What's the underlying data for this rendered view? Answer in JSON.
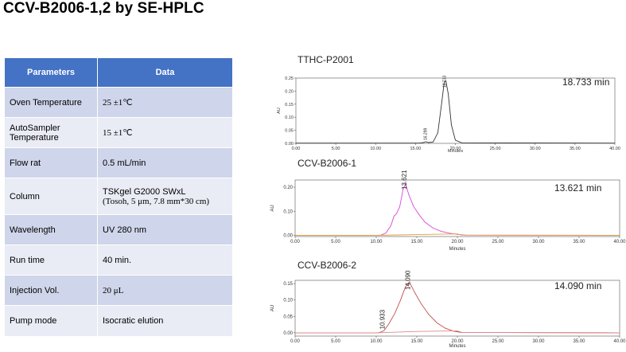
{
  "page_title": "CCV-B2006-1,2 by SE-HPLC",
  "table": {
    "headers": [
      "Parameters",
      "Data"
    ],
    "rows": [
      {
        "param": "Oven Temperature",
        "value": "25 ±1℃"
      },
      {
        "param": "AutoSampler Temperature",
        "value": "15 ±1℃"
      },
      {
        "param": "Flow rat",
        "value": "0.5 mL/min"
      },
      {
        "param": "Column",
        "value": "TSKgel G2000 SWxL",
        "value2": "(Tosoh, 5 μm, 7.8 mm*30 cm)"
      },
      {
        "param": "Wavelength",
        "value": "UV 280 nm"
      },
      {
        "param": "Run time",
        "value": "40 min."
      },
      {
        "param": "Injection Vol.",
        "value": "20 μL"
      },
      {
        "param": "Pump mode",
        "value": "Isocratic elution"
      }
    ]
  },
  "chart_data": [
    {
      "type": "line",
      "title": "TTHC-P2001",
      "retention_label": "18.733 min",
      "xlabel": "Minutes",
      "ylabel": "AU",
      "xlim": [
        0,
        40
      ],
      "ylim": [
        0,
        0.25
      ],
      "x_ticks": [
        "0.00",
        "5.00",
        "10.00",
        "15.00",
        "20.00",
        "25.00",
        "30.00",
        "35.00",
        "40.00"
      ],
      "y_ticks": [
        "0.00",
        "0.05",
        "0.10",
        "0.15",
        "0.20",
        "0.25"
      ],
      "peak_labels": [
        {
          "x": 16.3,
          "text": "16.299"
        },
        {
          "x": 18.7,
          "text": "18.733"
        }
      ],
      "series": [
        {
          "color": "#333333",
          "points": [
            [
              0,
              0.001
            ],
            [
              15.5,
              0.001
            ],
            [
              16.0,
              0.003
            ],
            [
              16.3,
              0.006
            ],
            [
              16.6,
              0.003
            ],
            [
              17.2,
              0.005
            ],
            [
              17.8,
              0.04
            ],
            [
              18.3,
              0.16
            ],
            [
              18.6,
              0.235
            ],
            [
              18.8,
              0.24
            ],
            [
              19.1,
              0.19
            ],
            [
              19.5,
              0.07
            ],
            [
              20.0,
              0.012
            ],
            [
              20.8,
              0.002
            ],
            [
              40,
              0.001
            ]
          ]
        }
      ]
    },
    {
      "type": "line",
      "title": "CCV-B2006-1",
      "retention_label": "13.621 min",
      "xlabel": "Minutes",
      "ylabel": "AU",
      "xlim": [
        0,
        40
      ],
      "ylim": [
        -0.005,
        0.23
      ],
      "x_ticks": [
        "0.00",
        "5.00",
        "10.00",
        "15.00",
        "20.00",
        "25.00",
        "30.00",
        "35.00",
        "40.00"
      ],
      "y_ticks": [
        "0.00",
        "0.10",
        "0.20"
      ],
      "peak_labels": [
        {
          "x": 13.62,
          "text": "13.621"
        }
      ],
      "series": [
        {
          "color": "#d44ad4",
          "points": [
            [
              0,
              0
            ],
            [
              10.5,
              0
            ],
            [
              11.2,
              0.01
            ],
            [
              11.8,
              0.04
            ],
            [
              12.2,
              0.08
            ],
            [
              12.5,
              0.09
            ],
            [
              12.9,
              0.12
            ],
            [
              13.3,
              0.19
            ],
            [
              13.62,
              0.215
            ],
            [
              14.0,
              0.17
            ],
            [
              14.6,
              0.12
            ],
            [
              15.3,
              0.085
            ],
            [
              16.0,
              0.055
            ],
            [
              17.0,
              0.03
            ],
            [
              18.0,
              0.017
            ],
            [
              19.0,
              0.009
            ],
            [
              20.0,
              0.004
            ],
            [
              21.0,
              0.001
            ],
            [
              40,
              0
            ]
          ]
        },
        {
          "color": "#e0a040",
          "points": [
            [
              0,
              0
            ],
            [
              10.0,
              0
            ],
            [
              15,
              0.003
            ],
            [
              20,
              0.006
            ],
            [
              20.5,
              0.001
            ],
            [
              40,
              0
            ]
          ]
        }
      ]
    },
    {
      "type": "line",
      "title": "CCV-B2006-2",
      "retention_label": "14.090 min",
      "xlabel": "Minutes",
      "ylabel": "AU",
      "xlim": [
        0,
        40
      ],
      "ylim": [
        -0.01,
        0.16
      ],
      "x_ticks": [
        "0.00",
        "5.00",
        "10.00",
        "15.00",
        "20.00",
        "25.00",
        "30.00",
        "35.00",
        "40.00"
      ],
      "y_ticks": [
        "0.00",
        "0.05",
        "0.10",
        "0.15"
      ],
      "peak_labels": [
        {
          "x": 10.93,
          "text": "10.933"
        },
        {
          "x": 14.09,
          "text": "14.090"
        }
      ],
      "series": [
        {
          "color": "#c05050",
          "points": [
            [
              0,
              0
            ],
            [
              10.3,
              0
            ],
            [
              10.93,
              0.006
            ],
            [
              11.5,
              0.025
            ],
            [
              12.3,
              0.06
            ],
            [
              13.0,
              0.1
            ],
            [
              13.6,
              0.14
            ],
            [
              14.09,
              0.155
            ],
            [
              14.7,
              0.125
            ],
            [
              15.5,
              0.09
            ],
            [
              16.5,
              0.055
            ],
            [
              17.5,
              0.03
            ],
            [
              18.5,
              0.014
            ],
            [
              19.5,
              0.005
            ],
            [
              20.5,
              0.001
            ],
            [
              40,
              0
            ]
          ]
        },
        {
          "color": "#e08888",
          "points": [
            [
              0,
              0
            ],
            [
              10,
              0
            ],
            [
              15,
              0.004
            ],
            [
              20,
              0.006
            ],
            [
              20.6,
              0.001
            ],
            [
              40,
              0
            ]
          ]
        }
      ]
    }
  ]
}
